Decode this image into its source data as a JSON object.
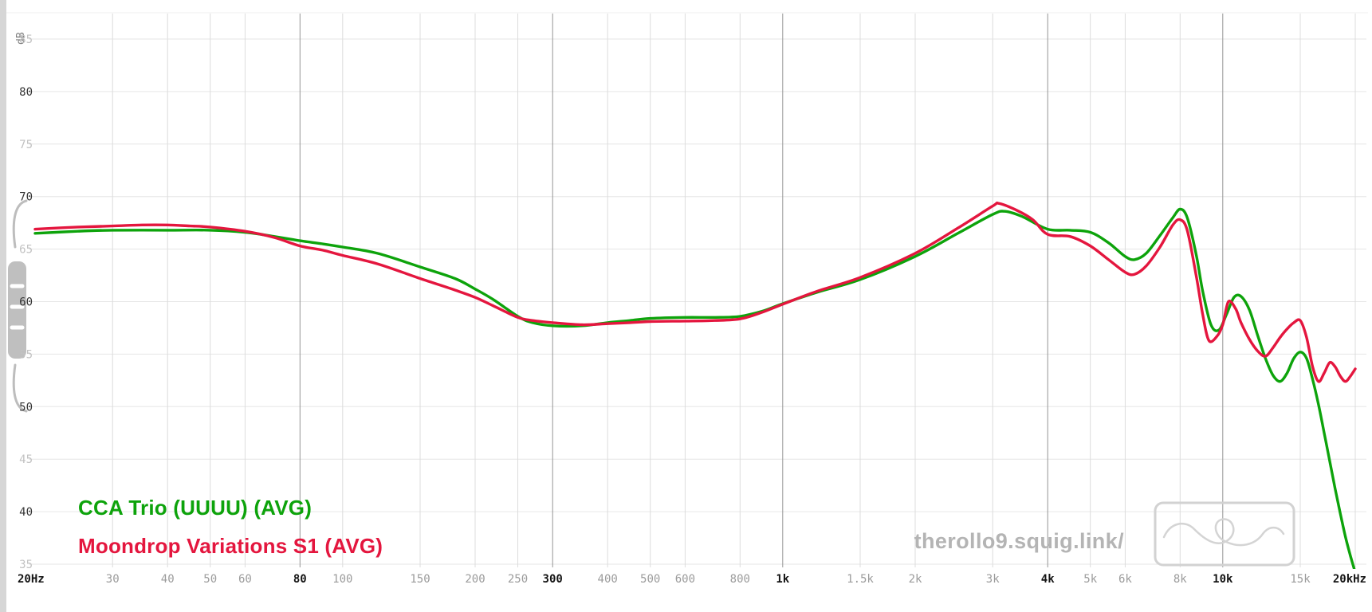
{
  "page": {
    "watermark": "therollo9.squig.link/"
  },
  "icons": {
    "sidebar_toggle": "menu-handle-icon",
    "logo": "squiggle-infinity-logo"
  },
  "chart_data": {
    "type": "line",
    "title": "",
    "ylabel": "dB",
    "x_scale": "log",
    "xlim": [
      20,
      20000
    ],
    "ylim": [
      35,
      85
    ],
    "grid": true,
    "legend_position": "bottom-left",
    "y_ticks": [
      35,
      40,
      45,
      50,
      55,
      60,
      65,
      70,
      75,
      80,
      85
    ],
    "major_x_gridlines": [
      80,
      300,
      1000,
      4000,
      10000
    ],
    "x_ticks": [
      {
        "f": 20,
        "label": "20Hz",
        "major": true
      },
      {
        "f": 30,
        "label": "30",
        "major": false
      },
      {
        "f": 40,
        "label": "40",
        "major": false
      },
      {
        "f": 50,
        "label": "50",
        "major": false
      },
      {
        "f": 60,
        "label": "60",
        "major": false
      },
      {
        "f": 80,
        "label": "80",
        "major": true
      },
      {
        "f": 100,
        "label": "100",
        "major": false
      },
      {
        "f": 150,
        "label": "150",
        "major": false
      },
      {
        "f": 200,
        "label": "200",
        "major": false
      },
      {
        "f": 250,
        "label": "250",
        "major": false
      },
      {
        "f": 300,
        "label": "300",
        "major": true
      },
      {
        "f": 400,
        "label": "400",
        "major": false
      },
      {
        "f": 500,
        "label": "500",
        "major": false
      },
      {
        "f": 600,
        "label": "600",
        "major": false
      },
      {
        "f": 800,
        "label": "800",
        "major": false
      },
      {
        "f": 1000,
        "label": "1k",
        "major": true
      },
      {
        "f": 1500,
        "label": "1.5k",
        "major": false
      },
      {
        "f": 2000,
        "label": "2k",
        "major": false
      },
      {
        "f": 3000,
        "label": "3k",
        "major": false
      },
      {
        "f": 4000,
        "label": "4k",
        "major": true
      },
      {
        "f": 5000,
        "label": "5k",
        "major": false
      },
      {
        "f": 6000,
        "label": "6k",
        "major": false
      },
      {
        "f": 8000,
        "label": "8k",
        "major": false
      },
      {
        "f": 10000,
        "label": "10k",
        "major": true
      },
      {
        "f": 15000,
        "label": "15k",
        "major": false
      },
      {
        "f": 20000,
        "label": "20kHz",
        "major": true
      }
    ],
    "series": [
      {
        "name": "CCA Trio (UUUU) (AVG)",
        "color": "#0da30b",
        "points": [
          [
            20,
            66.5
          ],
          [
            25,
            66.7
          ],
          [
            30,
            66.8
          ],
          [
            40,
            66.8
          ],
          [
            50,
            66.8
          ],
          [
            60,
            66.6
          ],
          [
            70,
            66.2
          ],
          [
            80,
            65.8
          ],
          [
            90,
            65.5
          ],
          [
            100,
            65.2
          ],
          [
            120,
            64.6
          ],
          [
            150,
            63.3
          ],
          [
            180,
            62.2
          ],
          [
            200,
            61.2
          ],
          [
            220,
            60.2
          ],
          [
            250,
            58.6
          ],
          [
            270,
            58.0
          ],
          [
            300,
            57.7
          ],
          [
            350,
            57.7
          ],
          [
            400,
            58.0
          ],
          [
            450,
            58.2
          ],
          [
            500,
            58.4
          ],
          [
            600,
            58.5
          ],
          [
            700,
            58.5
          ],
          [
            800,
            58.6
          ],
          [
            900,
            59.1
          ],
          [
            1000,
            59.8
          ],
          [
            1200,
            60.9
          ],
          [
            1500,
            62.1
          ],
          [
            2000,
            64.3
          ],
          [
            2500,
            66.5
          ],
          [
            3000,
            68.3
          ],
          [
            3200,
            68.6
          ],
          [
            3500,
            68.1
          ],
          [
            4000,
            66.9
          ],
          [
            4500,
            66.8
          ],
          [
            5000,
            66.6
          ],
          [
            5500,
            65.6
          ],
          [
            6000,
            64.3
          ],
          [
            6300,
            64.0
          ],
          [
            6700,
            64.6
          ],
          [
            7200,
            66.3
          ],
          [
            7700,
            68.0
          ],
          [
            8000,
            68.8
          ],
          [
            8300,
            68.0
          ],
          [
            8700,
            64.5
          ],
          [
            9000,
            61.0
          ],
          [
            9400,
            57.8
          ],
          [
            9800,
            57.3
          ],
          [
            10200,
            58.8
          ],
          [
            10600,
            60.4
          ],
          [
            11000,
            60.5
          ],
          [
            11500,
            59.2
          ],
          [
            12000,
            56.8
          ],
          [
            12500,
            54.6
          ],
          [
            13000,
            53.0
          ],
          [
            13500,
            52.4
          ],
          [
            14000,
            53.2
          ],
          [
            14500,
            54.6
          ],
          [
            15000,
            55.2
          ],
          [
            15500,
            54.6
          ],
          [
            16000,
            52.6
          ],
          [
            16500,
            50.2
          ],
          [
            17000,
            47.5
          ],
          [
            17500,
            44.8
          ],
          [
            18000,
            42.2
          ],
          [
            18500,
            39.8
          ],
          [
            19000,
            37.6
          ],
          [
            19500,
            35.8
          ],
          [
            20000,
            34.2
          ]
        ]
      },
      {
        "name": "Moondrop Variations S1 (AVG)",
        "color": "#e4163e",
        "points": [
          [
            20,
            66.9
          ],
          [
            25,
            67.1
          ],
          [
            30,
            67.2
          ],
          [
            35,
            67.3
          ],
          [
            40,
            67.3
          ],
          [
            45,
            67.2
          ],
          [
            50,
            67.1
          ],
          [
            60,
            66.7
          ],
          [
            70,
            66.1
          ],
          [
            80,
            65.3
          ],
          [
            90,
            64.9
          ],
          [
            100,
            64.4
          ],
          [
            120,
            63.6
          ],
          [
            150,
            62.2
          ],
          [
            180,
            61.1
          ],
          [
            200,
            60.4
          ],
          [
            220,
            59.6
          ],
          [
            250,
            58.5
          ],
          [
            270,
            58.2
          ],
          [
            300,
            58.0
          ],
          [
            350,
            57.8
          ],
          [
            400,
            57.9
          ],
          [
            450,
            58.0
          ],
          [
            500,
            58.1
          ],
          [
            600,
            58.15
          ],
          [
            700,
            58.2
          ],
          [
            800,
            58.35
          ],
          [
            900,
            59.0
          ],
          [
            1000,
            59.75
          ],
          [
            1200,
            61.0
          ],
          [
            1500,
            62.3
          ],
          [
            2000,
            64.6
          ],
          [
            2500,
            67.0
          ],
          [
            3000,
            69.1
          ],
          [
            3100,
            69.35
          ],
          [
            3400,
            68.7
          ],
          [
            3700,
            67.8
          ],
          [
            4000,
            66.4
          ],
          [
            4500,
            66.2
          ],
          [
            5000,
            65.3
          ],
          [
            5500,
            64.0
          ],
          [
            6000,
            62.8
          ],
          [
            6300,
            62.6
          ],
          [
            6700,
            63.4
          ],
          [
            7200,
            65.2
          ],
          [
            7700,
            67.3
          ],
          [
            8000,
            67.8
          ],
          [
            8300,
            66.8
          ],
          [
            8700,
            62.5
          ],
          [
            9000,
            58.8
          ],
          [
            9300,
            56.3
          ],
          [
            9700,
            56.7
          ],
          [
            10000,
            57.8
          ],
          [
            10300,
            60.0
          ],
          [
            10700,
            59.3
          ],
          [
            11000,
            58.0
          ],
          [
            11500,
            56.4
          ],
          [
            12000,
            55.3
          ],
          [
            12500,
            54.8
          ],
          [
            13000,
            55.6
          ],
          [
            13500,
            56.6
          ],
          [
            14000,
            57.4
          ],
          [
            14500,
            58.0
          ],
          [
            15000,
            58.2
          ],
          [
            15500,
            56.6
          ],
          [
            16000,
            53.8
          ],
          [
            16500,
            52.4
          ],
          [
            17000,
            53.2
          ],
          [
            17500,
            54.2
          ],
          [
            18000,
            53.8
          ],
          [
            18500,
            52.9
          ],
          [
            19000,
            52.4
          ],
          [
            19500,
            52.9
          ],
          [
            20000,
            53.6
          ]
        ]
      }
    ]
  }
}
